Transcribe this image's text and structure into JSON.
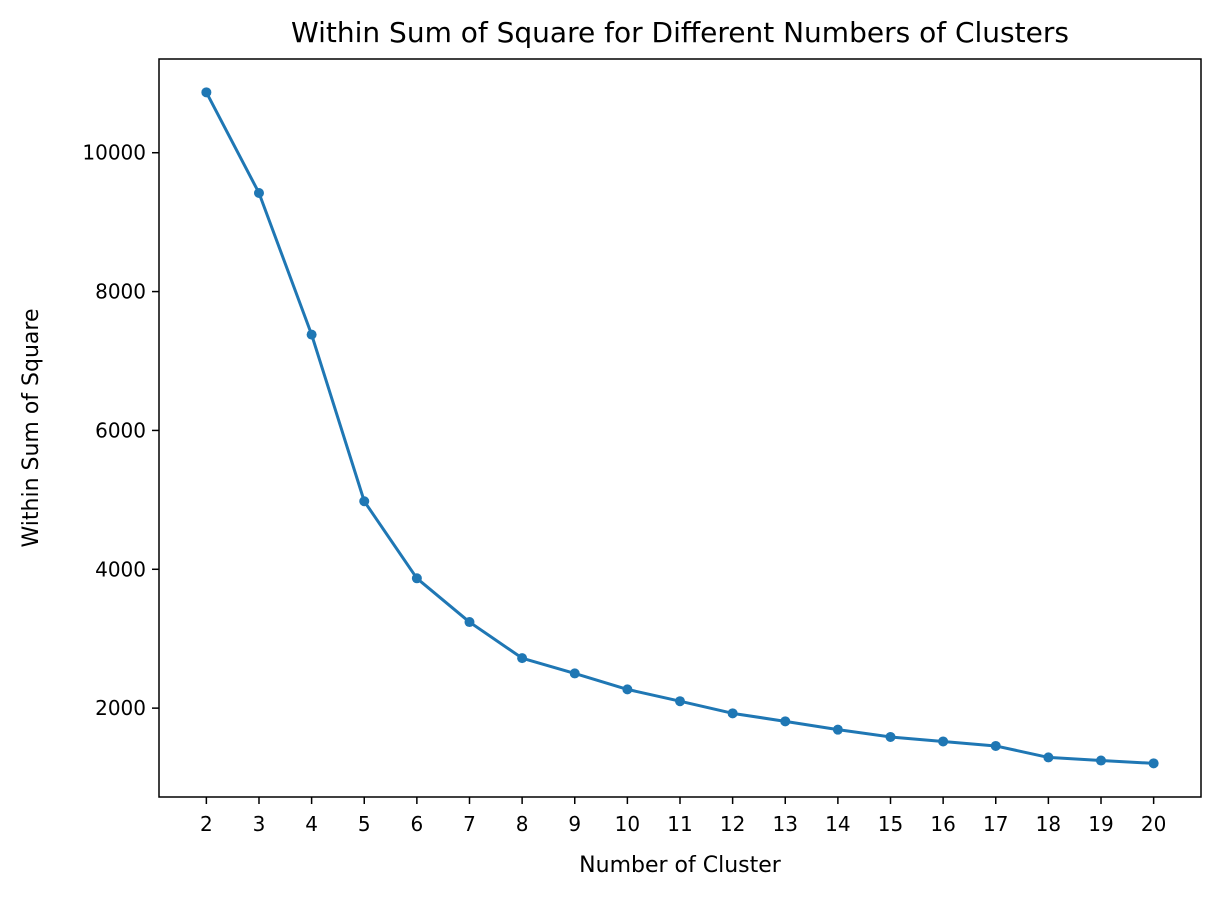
{
  "chart_data": {
    "type": "line",
    "title": "Within Sum of Square for Different Numbers of Clusters",
    "xlabel": "Number of Cluster",
    "ylabel": "Within Sum of Square",
    "x": [
      2,
      3,
      4,
      5,
      6,
      7,
      8,
      9,
      10,
      11,
      12,
      13,
      14,
      15,
      16,
      17,
      18,
      19,
      20
    ],
    "series": [
      {
        "values": [
          10870,
          9420,
          7380,
          4980,
          3870,
          3240,
          2720,
          2500,
          2270,
          2100,
          1925,
          1810,
          1690,
          1585,
          1520,
          1455,
          1290,
          1245,
          1205
        ],
        "color": "#1f77b4",
        "marker": "circle"
      }
    ],
    "xticks": [
      "2",
      "3",
      "4",
      "5",
      "6",
      "7",
      "8",
      "9",
      "10",
      "11",
      "12",
      "13",
      "14",
      "15",
      "16",
      "17",
      "18",
      "19",
      "20"
    ],
    "yticks": [
      2000,
      4000,
      6000,
      8000,
      10000
    ],
    "xlim": [
      1.1,
      20.9
    ],
    "ylim": [
      720,
      11350
    ],
    "grid": false,
    "legend": "none"
  }
}
